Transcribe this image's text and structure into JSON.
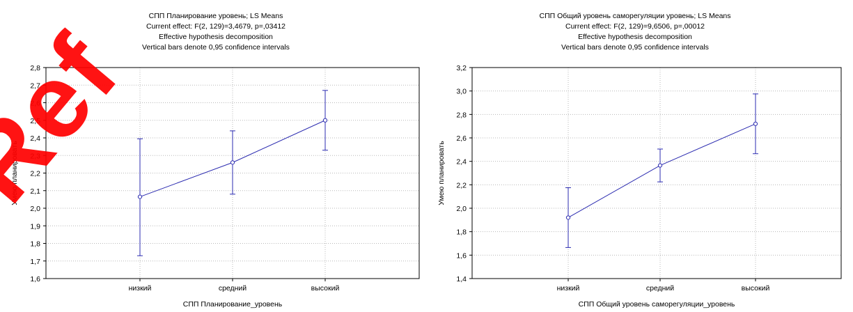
{
  "watermark": "Ref",
  "colors": {
    "series": "#2b2bb0",
    "grid": "#b8b8b8",
    "frame": "#000000",
    "watermark": "#ff0000"
  },
  "chart_data": [
    {
      "type": "line",
      "title_lines": [
        "СПП Планирование  уровень; LS Means",
        "Current effect: F(2, 129)=3,4679, p=,03412",
        "Effective hypothesis decomposition",
        "Vertical bars denote 0,95 confidence intervals"
      ],
      "xlabel": "СПП Планирование_уровень",
      "ylabel": "Умею планировать",
      "categories": [
        "низкий",
        "средний",
        "высокий"
      ],
      "series": [
        {
          "values": [
            2.065,
            2.26,
            2.5
          ],
          "ci_low": [
            1.73,
            2.08,
            2.33
          ],
          "ci_high": [
            2.395,
            2.44,
            2.67
          ]
        }
      ],
      "ylim": [
        1.6,
        2.8
      ],
      "yticks": [
        "2,8",
        "2,7",
        "2,6",
        "2,5",
        "2,4",
        "2,3",
        "2,2",
        "2,1",
        "2,0",
        "1,9",
        "1,8",
        "1,7",
        "1,6"
      ],
      "grid": true
    },
    {
      "type": "line",
      "title_lines": [
        "СПП Общий уровень саморегуляции  уровень; LS Means",
        "Current effect: F(2, 129)=9,6506, p=,00012",
        "Effective hypothesis decomposition",
        "Vertical bars denote 0,95 confidence intervals"
      ],
      "xlabel": "СПП Общий уровень саморегуляции_уровень",
      "ylabel": "Умею планировать",
      "categories": [
        "низкий",
        "средний",
        "высокий"
      ],
      "series": [
        {
          "values": [
            1.92,
            2.365,
            2.72
          ],
          "ci_low": [
            1.665,
            2.225,
            2.465
          ],
          "ci_high": [
            2.175,
            2.505,
            2.975
          ]
        }
      ],
      "ylim": [
        1.4,
        3.2
      ],
      "yticks": [
        "3,2",
        "3,0",
        "2,8",
        "2,6",
        "2,4",
        "2,2",
        "2,0",
        "1,8",
        "1,6",
        "1,4"
      ],
      "grid": true
    }
  ]
}
